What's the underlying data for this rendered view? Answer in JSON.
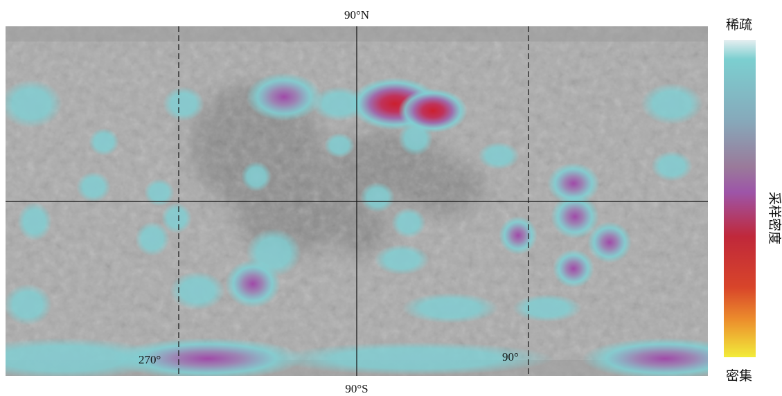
{
  "map": {
    "north_label": "90°N",
    "south_label": "90°S",
    "left_meridian_label": "270°",
    "right_meridian_label": "90°",
    "legend": {
      "top_label": "稀疏",
      "bottom_label": "密集",
      "title": "采样密度"
    }
  }
}
